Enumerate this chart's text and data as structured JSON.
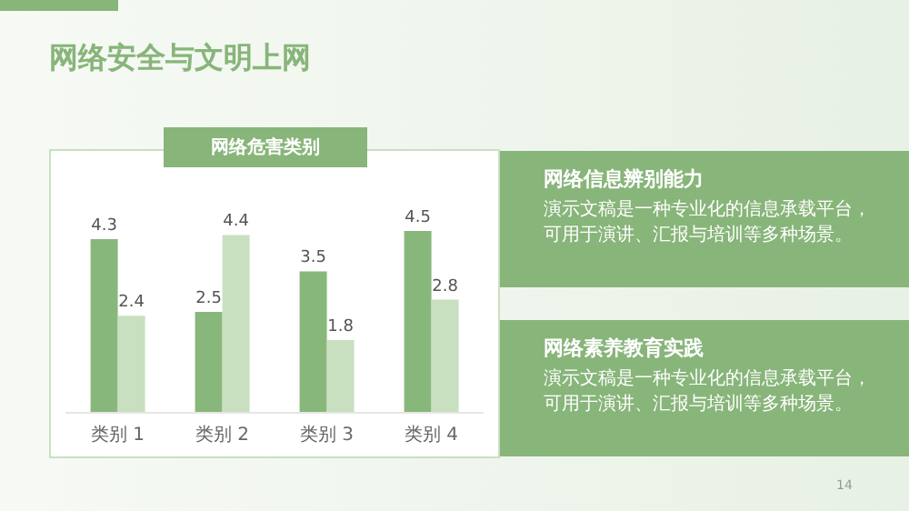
{
  "chart_data": {
    "type": "bar",
    "title": "网络安全与文明上网",
    "subtitle": "网络危害类别",
    "categories": [
      "类别 1",
      "类别 2",
      "类别 3",
      "类别 4"
    ],
    "series": [
      {
        "color": "#88b77b",
        "values": [
          4.3,
          2.5,
          3.5,
          4.5
        ]
      },
      {
        "color": "#c8e0c0",
        "values": [
          2.4,
          4.4,
          1.8,
          2.8
        ]
      }
    ],
    "data_labels": true,
    "grid": false,
    "legend": false,
    "annotations": [
      "网络信息辨别能力",
      "演示文稿是一种专业化的信息承载平台，可用于演讲、汇报与培训等多种场景。",
      "网络素养教育实践",
      "演示文稿是一种专业化的信息承载平台，可用于演讲、汇报与培训等多种场景。",
      "14"
    ]
  }
}
